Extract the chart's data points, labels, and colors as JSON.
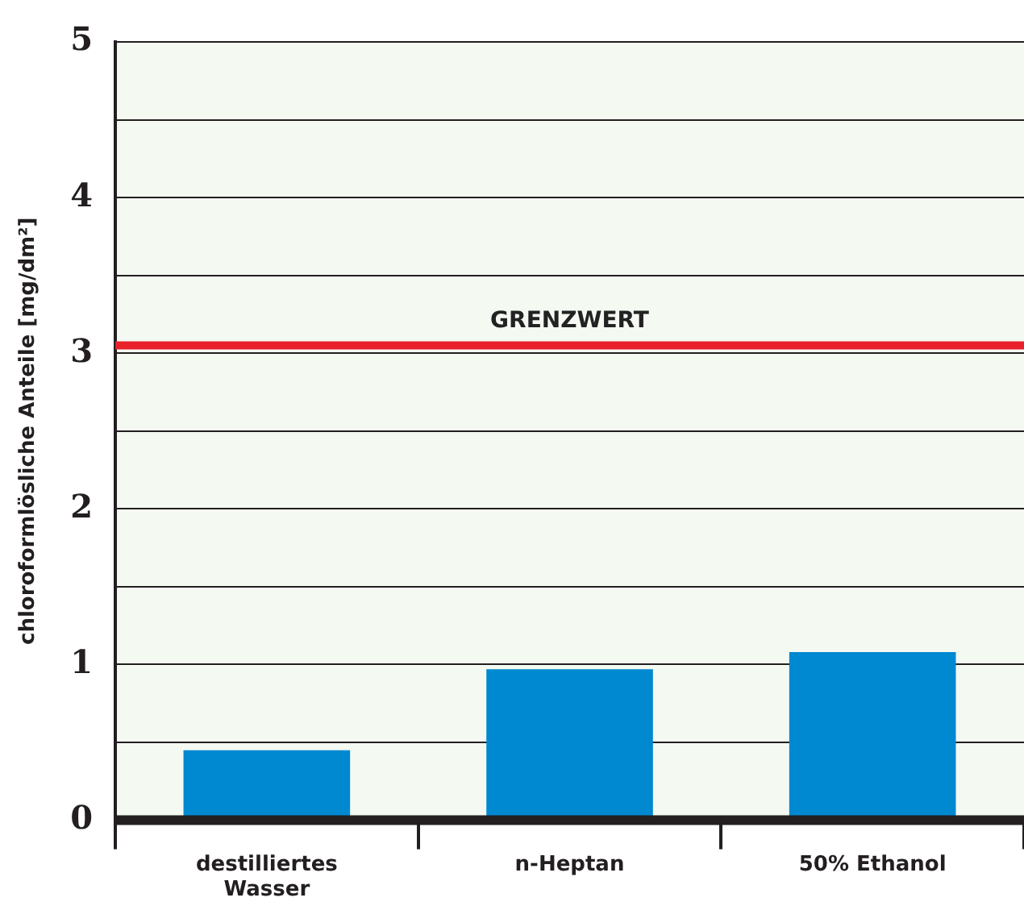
{
  "chart_data": {
    "type": "bar",
    "ylabel": "chloroformlösliche Anteile [mg/dm²]",
    "categories": [
      "destilliertes\nWasser",
      "n-Heptan",
      "50% Ethanol"
    ],
    "values": [
      0.45,
      0.97,
      1.08
    ],
    "color": "#0088d1",
    "ylim": [
      0,
      5
    ],
    "yticks": [
      0,
      {
        "value": 0.5,
        "label": null
      },
      1,
      {
        "value": 1.5,
        "label": null
      },
      2,
      {
        "value": 2.5,
        "label": null
      },
      3,
      {
        "value": 3.5,
        "label": null
      },
      4,
      {
        "value": 4.5,
        "label": null
      },
      5
    ],
    "grid": "y",
    "legend": false,
    "ref_lines": [
      {
        "axis": "y",
        "value": 3.05,
        "label": "GRENZWERT",
        "color": "#e8202a"
      }
    ]
  }
}
